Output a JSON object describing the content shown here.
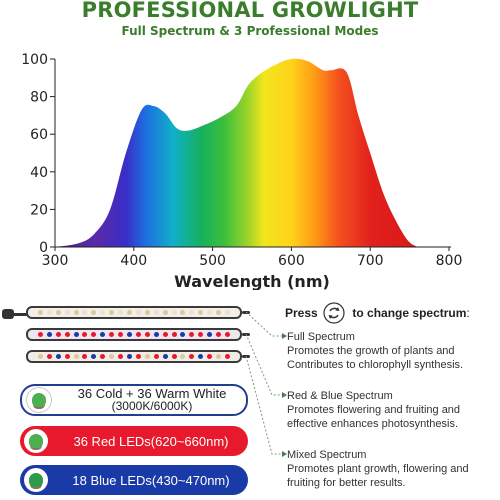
{
  "header": {
    "title": "PROFESSIONAL GROWLIGHT",
    "subtitle": "Full Spectrum & 3 Professional Modes"
  },
  "chart_data": {
    "type": "area",
    "xlabel": "Wavelength (nm)",
    "ylabel": "",
    "xlim": [
      300,
      800
    ],
    "ylim": [
      0,
      100
    ],
    "x_ticks": [
      300,
      400,
      500,
      600,
      700,
      800
    ],
    "y_ticks": [
      0,
      20,
      40,
      60,
      80,
      100
    ],
    "series": [
      {
        "x": [
          300,
          330,
          350,
          370,
          390,
          410,
          425,
          440,
          455,
          470,
          490,
          510,
          530,
          545,
          560,
          580,
          600,
          620,
          640,
          650,
          670,
          685,
          700,
          720,
          745,
          760
        ],
        "values": [
          0,
          2,
          7,
          20,
          50,
          73,
          75,
          71,
          63,
          62,
          65,
          69,
          75,
          86,
          92,
          97,
          100,
          99,
          94,
          94,
          93,
          70,
          50,
          25,
          5,
          0
        ]
      }
    ]
  },
  "control": {
    "press_label": "Press",
    "press_suffix": "to change spectrum",
    "refresh_icon": "cycle-arrows-icon"
  },
  "modes": [
    {
      "title": "Full Spectrum",
      "line1": "Promotes the growth of plants and",
      "line2": "Contributes to chlorophyll synthesis."
    },
    {
      "title": "Red & Blue Spectrum",
      "line1": "Promotes flowering and fruiting and",
      "line2": "effective enhances photosynthesis."
    },
    {
      "title": "Mixed Spectrum",
      "line1": "Promotes plant growth, flowering and",
      "line2": "fruiting for better results."
    }
  ],
  "led_options": [
    {
      "line1": "36 Cold + 36 Warm White",
      "line2": "(3000K/6000K)",
      "bg": "#ffffff",
      "fg": "#222222",
      "border": "#1f3f8f"
    },
    {
      "line1": "36 Red LEDs(620~660nm)",
      "bg": "#e8192c",
      "fg": "#ffffff",
      "border": "#e8192c"
    },
    {
      "line1": "18 Blue LEDs(430~470nm)",
      "bg": "#1a3aa8",
      "fg": "#ffffff",
      "border": "#1a3aa8"
    }
  ],
  "colors": {
    "title_green": "#3a7d2c",
    "red": "#e8192c",
    "blue": "#1a3aa8"
  }
}
